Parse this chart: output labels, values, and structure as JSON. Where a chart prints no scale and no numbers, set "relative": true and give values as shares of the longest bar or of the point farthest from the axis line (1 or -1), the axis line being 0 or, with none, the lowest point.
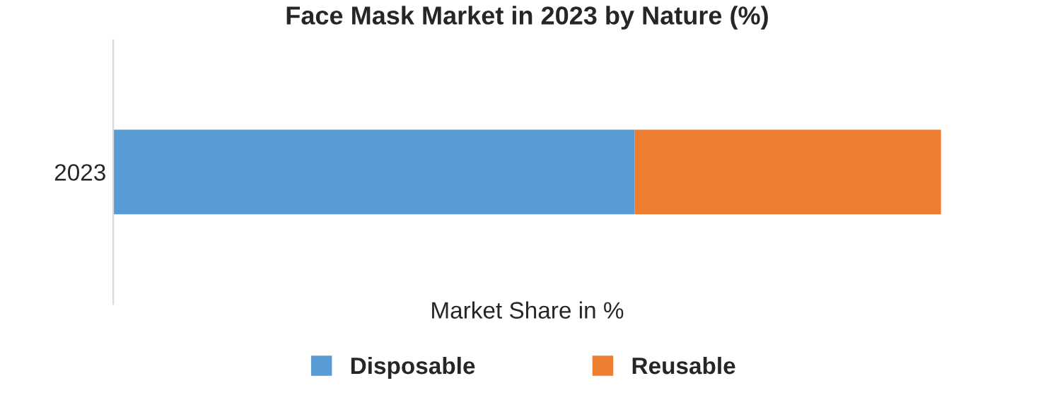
{
  "chart_data": {
    "type": "bar",
    "orientation": "horizontal",
    "stacked": true,
    "relative": true,
    "title": "Face Mask Market in 2023 by Nature (%)",
    "xlabel": "Market Share in %",
    "categories": [
      "2023"
    ],
    "series": [
      {
        "name": "Disposable",
        "color": "#5b9bd5",
        "values": [
          0.63
        ]
      },
      {
        "name": "Reusable",
        "color": "#ed7d31",
        "values": [
          0.37
        ]
      }
    ],
    "legend": "bottom"
  }
}
